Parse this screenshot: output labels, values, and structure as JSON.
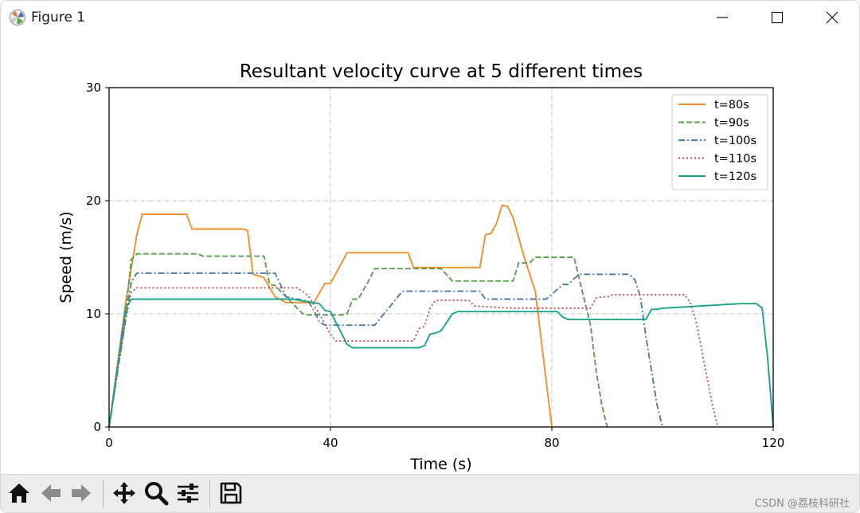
{
  "window": {
    "title": "Figure 1",
    "icons": {
      "app": "matplotlib-figure-icon",
      "minimize": "minimize-icon",
      "maximize": "maximize-icon",
      "close": "close-icon"
    }
  },
  "toolbar": {
    "tools": [
      {
        "name": "home-icon",
        "label": "Home"
      },
      {
        "name": "back-arrow-icon",
        "label": "Back"
      },
      {
        "name": "forward-arrow-icon",
        "label": "Forward"
      },
      {
        "name": "pan-move-icon",
        "label": "Pan"
      },
      {
        "name": "zoom-magnifier-icon",
        "label": "Zoom"
      },
      {
        "name": "configure-subplots-icon",
        "label": "Subplots"
      },
      {
        "name": "save-disk-icon",
        "label": "Save"
      }
    ]
  },
  "watermark": "CSDN @荔枝科研社",
  "chart_data": {
    "type": "line",
    "title": "Resultant velocity curve at 5 different times",
    "xlabel": "Time (s)",
    "ylabel": "Speed (m/s)",
    "xlim": [
      0,
      120
    ],
    "ylim": [
      0,
      30
    ],
    "xticks": [
      0,
      40,
      80,
      120
    ],
    "yticks": [
      0,
      10,
      20,
      30
    ],
    "xtick_labels": [
      "0",
      "40",
      "80",
      "120"
    ],
    "ytick_labels": [
      "0",
      "10",
      "20",
      "30"
    ],
    "grid": true,
    "legend_position": "upper-right",
    "series": [
      {
        "name": "t=80s",
        "color": "#f28e2b",
        "style": "solid",
        "x": [
          0,
          3,
          5,
          6,
          14,
          15,
          24,
          25,
          26,
          28,
          30,
          32,
          36,
          37,
          39,
          40,
          43,
          54,
          55,
          67,
          68,
          69,
          70,
          71,
          72,
          73,
          75,
          77,
          78,
          79,
          80
        ],
        "y": [
          0,
          11,
          17,
          18.8,
          18.8,
          17.5,
          17.5,
          17.4,
          13.5,
          13.2,
          11.5,
          11,
          11,
          11,
          12.7,
          12.7,
          15.4,
          15.4,
          14.1,
          14.1,
          17,
          17.1,
          18,
          19.6,
          19.5,
          18.5,
          15,
          12,
          8,
          4,
          0
        ]
      },
      {
        "name": "t=90s",
        "color": "#59a14f",
        "style": "dashed",
        "x": [
          0,
          3,
          4,
          5,
          16,
          17,
          27,
          28,
          29,
          30,
          35,
          36,
          42,
          43,
          44,
          45,
          47,
          48,
          60,
          62,
          73,
          74,
          76,
          77,
          84,
          85,
          87,
          88,
          89,
          90
        ],
        "y": [
          0,
          10,
          14.8,
          15.3,
          15.3,
          15.1,
          15.1,
          15.1,
          12.6,
          12.5,
          10,
          9.9,
          9.9,
          10,
          11.3,
          11.3,
          13,
          14,
          14,
          12.9,
          12.9,
          14.5,
          14.5,
          15,
          15,
          13,
          9,
          5,
          2,
          0
        ]
      },
      {
        "name": "t=100s",
        "color": "#4e79a7",
        "style": "dashdot",
        "x": [
          0,
          3,
          4,
          5,
          30,
          32,
          36,
          37,
          38,
          39,
          48,
          50,
          52,
          53,
          67,
          68,
          78,
          79,
          82,
          83,
          84,
          85,
          94,
          95,
          96,
          97,
          98,
          99,
          100
        ],
        "y": [
          0,
          9.5,
          12.8,
          13.6,
          13.6,
          11.5,
          11.1,
          10.3,
          9.3,
          9,
          9,
          10.2,
          11.4,
          12,
          12,
          11.3,
          11.3,
          11.3,
          12.6,
          12.6,
          13.1,
          13.5,
          13.5,
          13,
          11.5,
          8,
          5,
          2,
          0
        ]
      },
      {
        "name": "t=110s",
        "color": "#c44e52",
        "style": "dotted",
        "x": [
          0,
          3,
          4,
          5,
          34,
          36,
          38,
          40,
          41,
          55,
          56,
          57,
          58,
          59,
          60,
          65,
          66,
          73,
          74,
          87,
          88,
          89,
          90,
          91,
          104,
          105,
          106,
          107,
          108,
          109,
          110
        ],
        "y": [
          0,
          9.5,
          11.9,
          12.3,
          12.3,
          11.6,
          10,
          8.2,
          7.6,
          7.6,
          8.7,
          8.9,
          10.5,
          11.2,
          11.2,
          11.2,
          10.7,
          10.5,
          10.5,
          10.5,
          11.4,
          11.5,
          11.5,
          11.7,
          11.7,
          11,
          9.5,
          7,
          4.5,
          2,
          0
        ]
      },
      {
        "name": "t=120s",
        "color": "#1aa38a",
        "style": "solid",
        "x": [
          0,
          2,
          3,
          4,
          30,
          31,
          33,
          38,
          39,
          40,
          43,
          44,
          56,
          57,
          58,
          59,
          60,
          62,
          63,
          65,
          81,
          82,
          83,
          94,
          95,
          97,
          98,
          99,
          100,
          114,
          115,
          116,
          117,
          118,
          119,
          120
        ],
        "y": [
          0,
          7,
          10.5,
          11.3,
          11.3,
          11.3,
          11.3,
          10.9,
          10.3,
          10.2,
          7.3,
          7,
          7,
          7.2,
          8.2,
          8.3,
          8.5,
          10,
          10.2,
          10.2,
          10.2,
          9.7,
          9.5,
          9.5,
          9.5,
          9.5,
          10.4,
          10.4,
          10.5,
          10.9,
          10.9,
          10.9,
          10.9,
          10.5,
          6,
          0
        ]
      }
    ]
  }
}
